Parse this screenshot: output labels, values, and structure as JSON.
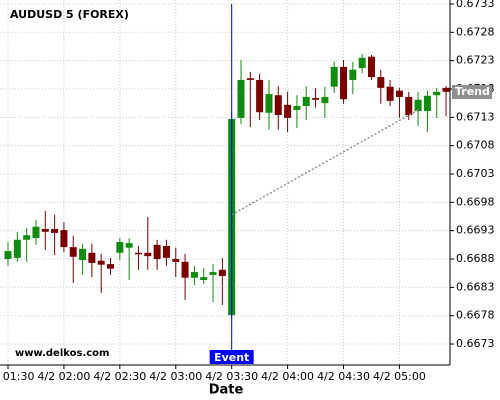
{
  "chart_data": {
    "type": "candlestick",
    "title": "AUDUSD 5 (FOREX)",
    "x_label": "Date",
    "watermark": "www.delkos.com",
    "categories": [
      "4/2 01:30",
      null,
      null,
      null,
      null,
      null,
      "4/2 02:00",
      null,
      null,
      null,
      null,
      null,
      "4/2 02:30",
      null,
      null,
      null,
      null,
      null,
      "4/2 03:00",
      null,
      null,
      null,
      null,
      null,
      "4/2 03:30",
      null,
      null,
      null,
      null,
      null,
      "4/2 04:00",
      null,
      null,
      null,
      null,
      null,
      "4/2 04:30",
      null,
      null,
      null,
      null,
      null,
      "4/2 05:00",
      null,
      null,
      null,
      null,
      null
    ],
    "open": [
      0.6688,
      0.66882,
      0.66914,
      0.66917,
      0.66933,
      0.66933,
      0.66931,
      0.66901,
      0.66878,
      0.66891,
      0.66877,
      0.66871,
      0.66891,
      0.669,
      0.66891,
      0.66891,
      0.66905,
      0.66903,
      0.6688,
      0.66875,
      0.66847,
      0.66843,
      0.66852,
      0.66861,
      0.66781,
      0.67129,
      0.67199,
      0.67196,
      0.67138,
      0.67169,
      0.67152,
      0.67143,
      0.6715,
      0.67164,
      0.67155,
      0.67184,
      0.67219,
      0.67196,
      0.67217,
      0.67237,
      0.67201,
      0.67184,
      0.67177,
      0.67166,
      0.67141,
      0.67141,
      0.67169,
      0.67182
    ],
    "high": [
      0.6691,
      0.66928,
      0.66935,
      0.66949,
      0.66965,
      0.66958,
      0.66945,
      0.66921,
      0.66907,
      0.66907,
      0.66889,
      0.66882,
      0.66917,
      0.66917,
      0.66903,
      0.66954,
      0.66914,
      0.66914,
      0.669,
      0.66889,
      0.66868,
      0.66864,
      0.66871,
      0.66882,
      0.67139,
      0.67231,
      0.6721,
      0.67207,
      0.67196,
      0.67185,
      0.67175,
      0.67169,
      0.67185,
      0.67182,
      0.67184,
      0.67228,
      0.67231,
      0.67228,
      0.67242,
      0.6724,
      0.67214,
      0.67196,
      0.67182,
      0.67175,
      0.67175,
      0.67177,
      0.67182,
      0.67185
    ],
    "low": [
      0.66868,
      0.66875,
      0.66875,
      0.66905,
      0.66896,
      0.66887,
      0.66892,
      0.66838,
      0.66852,
      0.66848,
      0.6682,
      0.66852,
      0.66878,
      0.66843,
      0.66861,
      0.66861,
      0.66861,
      0.66868,
      0.66848,
      0.66808,
      0.66834,
      0.66836,
      0.66804,
      0.66799,
      0.66773,
      0.67118,
      0.67113,
      0.67125,
      0.67108,
      0.67108,
      0.67104,
      0.67111,
      0.67125,
      0.67147,
      0.67129,
      0.67173,
      0.67154,
      0.67171,
      0.67208,
      0.67196,
      0.67154,
      0.6715,
      0.67129,
      0.67125,
      0.67115,
      0.67104,
      0.67129,
      0.67132
    ],
    "close": [
      0.66894,
      0.66914,
      0.66922,
      0.66937,
      0.66928,
      0.66926,
      0.66901,
      0.66884,
      0.66898,
      0.66873,
      0.6687,
      0.66863,
      0.6691,
      0.66908,
      0.66889,
      0.66885,
      0.6688,
      0.66882,
      0.66875,
      0.66847,
      0.66857,
      0.66848,
      0.66857,
      0.6685,
      0.67127,
      0.67196,
      0.67196,
      0.67139,
      0.67171,
      0.67134,
      0.67129,
      0.6715,
      0.67166,
      0.67161,
      0.67166,
      0.67219,
      0.67162,
      0.67214,
      0.67235,
      0.67201,
      0.67182,
      0.67159,
      0.67166,
      0.67134,
      0.67161,
      0.67168,
      0.67175,
      0.67175
    ],
    "up_color": "#118c11",
    "down_color": "#7a0000",
    "trend": {
      "label": "Trend",
      "start": [
        24,
        0.66958
      ],
      "end": [
        44,
        0.67143
      ],
      "color": "#909090"
    },
    "event": {
      "label": "Event",
      "index": 24,
      "color": "#0000ff"
    },
    "ylim": [
      0.66693,
      0.67337
    ],
    "yticks": [
      0.6673,
      0.6678,
      0.6683,
      0.6688,
      0.6693,
      0.6698,
      0.6703,
      0.6708,
      0.6713,
      0.6718,
      0.6723,
      0.6728,
      0.6733
    ],
    "grid": true
  }
}
